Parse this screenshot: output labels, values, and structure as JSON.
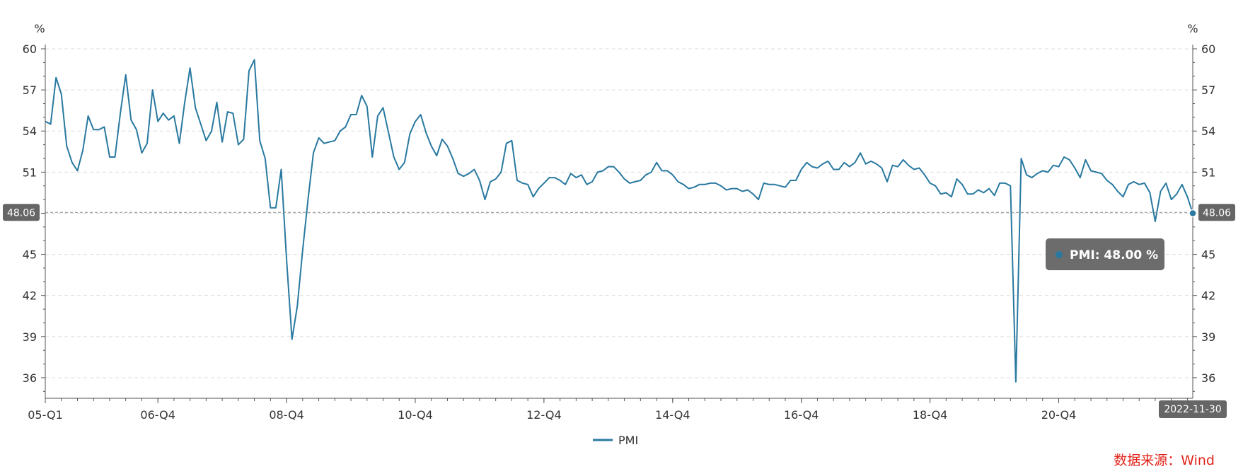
{
  "chart_data": {
    "type": "line",
    "title": "",
    "xlabel": "",
    "ylabel_left": "%",
    "ylabel_right": "%",
    "ylim": [
      34.5,
      60
    ],
    "yticks": [
      60,
      57,
      54,
      51,
      48,
      45,
      42,
      39,
      36
    ],
    "x_start": "2005-01",
    "x_end": "2022-11",
    "xticks": [
      {
        "label": "05-Q1",
        "date": "2005-01"
      },
      {
        "label": "06-Q4",
        "date": "2006-10"
      },
      {
        "label": "08-Q4",
        "date": "2008-10"
      },
      {
        "label": "10-Q4",
        "date": "2010-10"
      },
      {
        "label": "12-Q4",
        "date": "2012-10"
      },
      {
        "label": "14-Q4",
        "date": "2014-10"
      },
      {
        "label": "16-Q4",
        "date": "2016-10"
      },
      {
        "label": "18-Q4",
        "date": "2018-10"
      },
      {
        "label": "20-Q4",
        "date": "2020-10"
      }
    ],
    "grid": true,
    "legend_position": "bottom-center",
    "series": [
      {
        "name": "PMI",
        "color": "#2979a0",
        "values": [
          54.7,
          54.5,
          57.9,
          56.7,
          52.9,
          51.7,
          51.1,
          52.6,
          55.1,
          54.1,
          54.1,
          54.3,
          52.1,
          52.1,
          55.3,
          58.1,
          54.8,
          54.1,
          52.4,
          53.1,
          57.0,
          54.7,
          55.3,
          54.8,
          55.1,
          53.1,
          56.1,
          58.6,
          55.7,
          54.5,
          53.3,
          54.0,
          56.1,
          53.2,
          55.4,
          55.3,
          53.0,
          53.4,
          58.4,
          59.2,
          53.3,
          52.0,
          48.4,
          48.4,
          51.2,
          44.6,
          38.8,
          41.2,
          45.3,
          49.0,
          52.4,
          53.5,
          53.1,
          53.2,
          53.3,
          54.0,
          54.3,
          55.2,
          55.2,
          56.6,
          55.8,
          52.1,
          55.1,
          55.7,
          53.9,
          52.1,
          51.2,
          51.7,
          53.8,
          54.7,
          55.2,
          53.9,
          52.9,
          52.2,
          53.4,
          52.9,
          52.0,
          50.9,
          50.7,
          50.9,
          51.2,
          50.4,
          49.0,
          50.3,
          50.5,
          51.0,
          53.1,
          53.3,
          50.4,
          50.2,
          50.1,
          49.2,
          49.8,
          50.2,
          50.6,
          50.6,
          50.4,
          50.1,
          50.9,
          50.6,
          50.8,
          50.1,
          50.3,
          51.0,
          51.1,
          51.4,
          51.4,
          51.0,
          50.5,
          50.2,
          50.3,
          50.4,
          50.8,
          51.0,
          51.7,
          51.1,
          51.1,
          50.8,
          50.3,
          50.1,
          49.8,
          49.9,
          50.1,
          50.1,
          50.2,
          50.2,
          50.0,
          49.7,
          49.8,
          49.8,
          49.6,
          49.7,
          49.4,
          49.0,
          50.2,
          50.1,
          50.1,
          50.0,
          49.9,
          50.4,
          50.4,
          51.2,
          51.7,
          51.4,
          51.3,
          51.6,
          51.8,
          51.2,
          51.2,
          51.7,
          51.4,
          51.7,
          52.4,
          51.6,
          51.8,
          51.6,
          51.3,
          50.3,
          51.5,
          51.4,
          51.9,
          51.5,
          51.2,
          51.3,
          50.8,
          50.2,
          50.0,
          49.4,
          49.5,
          49.2,
          50.5,
          50.1,
          49.4,
          49.4,
          49.7,
          49.5,
          49.8,
          49.3,
          50.2,
          50.2,
          50.0,
          35.7,
          52.0,
          50.8,
          50.6,
          50.9,
          51.1,
          51.0,
          51.5,
          51.4,
          52.1,
          51.9,
          51.3,
          50.6,
          51.9,
          51.1,
          51.0,
          50.9,
          50.4,
          50.1,
          49.6,
          49.2,
          50.1,
          50.3,
          50.1,
          50.2,
          49.5,
          47.4,
          49.6,
          50.2,
          49.0,
          49.4,
          50.1,
          49.2,
          48.0
        ]
      }
    ],
    "hover": {
      "x_label": "2022-11-30",
      "y_label": "48.06",
      "tooltip": "PMI: 48.00  %"
    }
  },
  "source_text": "数据来源：Wind"
}
